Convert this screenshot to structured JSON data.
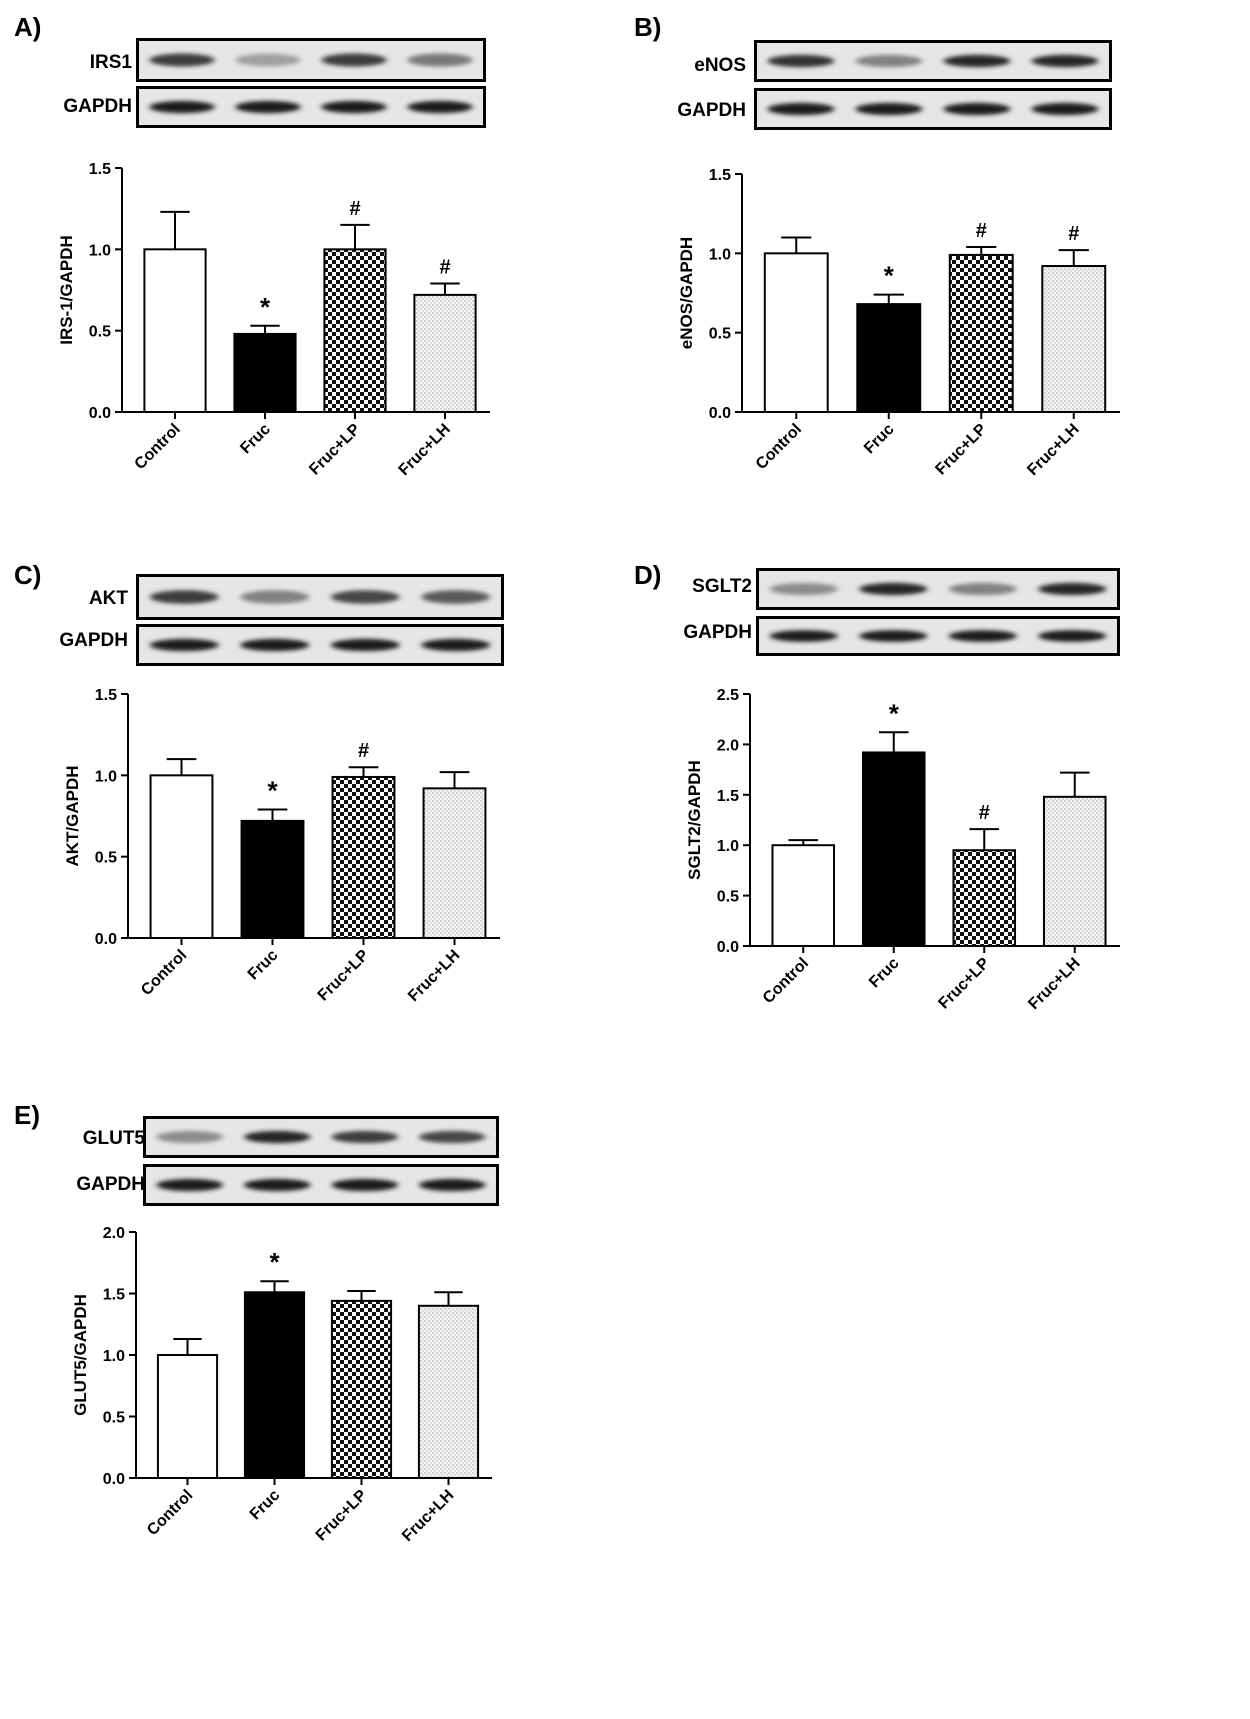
{
  "chart_data": [
    {
      "panel": "A)",
      "type": "bar",
      "blot_labels": [
        "IRS1",
        "GAPDH"
      ],
      "categories": [
        "Control",
        "Fruc",
        "Fruc+LP",
        "Fruc+LH"
      ],
      "values": [
        1.0,
        0.48,
        1.0,
        0.72
      ],
      "errors": [
        0.23,
        0.05,
        0.15,
        0.07
      ],
      "annotations": [
        "",
        "*",
        "#",
        "#"
      ],
      "ylabel": "IRS-1/GAPDH",
      "xlabel": "",
      "title": "",
      "ylim": [
        0,
        1.5
      ],
      "yticks": [
        "0.0",
        "0.5",
        "1.0",
        "1.5"
      ],
      "band_intensity": [
        [
          0.85,
          0.35,
          0.85,
          0.55
        ],
        [
          1.0,
          1.0,
          1.0,
          1.0
        ]
      ]
    },
    {
      "panel": "B)",
      "type": "bar",
      "blot_labels": [
        "eNOS",
        "GAPDH"
      ],
      "categories": [
        "Control",
        "Fruc",
        "Fruc+LP",
        "Fruc+LH"
      ],
      "values": [
        1.0,
        0.68,
        0.99,
        0.92
      ],
      "errors": [
        0.1,
        0.06,
        0.05,
        0.1
      ],
      "annotations": [
        "",
        "*",
        "#",
        "#"
      ],
      "ylabel": "eNOS/GAPDH",
      "xlabel": "",
      "title": "",
      "ylim": [
        0,
        1.5
      ],
      "yticks": [
        "0.0",
        "0.5",
        "1.0",
        "1.5"
      ],
      "band_intensity": [
        [
          0.9,
          0.5,
          0.95,
          0.95
        ],
        [
          1.0,
          1.0,
          1.0,
          1.0
        ]
      ]
    },
    {
      "panel": "C)",
      "type": "bar",
      "blot_labels": [
        "AKT",
        "GAPDH"
      ],
      "categories": [
        "Control",
        "Fruc",
        "Fruc+LP",
        "Fruc+LH"
      ],
      "values": [
        1.0,
        0.72,
        0.99,
        0.92
      ],
      "errors": [
        0.1,
        0.07,
        0.06,
        0.1
      ],
      "annotations": [
        "",
        "*",
        "#",
        ""
      ],
      "ylabel": "AKT/GAPDH",
      "xlabel": "",
      "title": "",
      "ylim": [
        0,
        1.5
      ],
      "yticks": [
        "0.0",
        "0.5",
        "1.0",
        "1.5"
      ],
      "band_intensity": [
        [
          0.85,
          0.5,
          0.8,
          0.7
        ],
        [
          1.0,
          1.0,
          1.0,
          1.0
        ]
      ]
    },
    {
      "panel": "D)",
      "type": "bar",
      "blot_labels": [
        "SGLT2",
        "GAPDH"
      ],
      "categories": [
        "Control",
        "Fruc",
        "Fruc+LP",
        "Fruc+LH"
      ],
      "values": [
        1.0,
        1.92,
        0.95,
        1.48
      ],
      "errors": [
        0.05,
        0.2,
        0.21,
        0.24
      ],
      "annotations": [
        "",
        "*",
        "#",
        ""
      ],
      "ylabel": "SGLT2/GAPDH",
      "xlabel": "",
      "title": "",
      "ylim": [
        0,
        2.5
      ],
      "yticks": [
        "0.0",
        "0.5",
        "1.0",
        "1.5",
        "2.0",
        "2.5"
      ],
      "band_intensity": [
        [
          0.45,
          0.95,
          0.5,
          0.95
        ],
        [
          1.0,
          1.0,
          1.0,
          1.0
        ]
      ]
    },
    {
      "panel": "E)",
      "type": "bar",
      "blot_labels": [
        "GLUT5",
        "GAPDH"
      ],
      "categories": [
        "Control",
        "Fruc",
        "Fruc+LP",
        "Fruc+LH"
      ],
      "values": [
        1.0,
        1.51,
        1.44,
        1.4
      ],
      "errors": [
        0.13,
        0.09,
        0.08,
        0.11
      ],
      "annotations": [
        "",
        "*",
        "",
        ""
      ],
      "ylabel": "GLUT5/GAPDH",
      "xlabel": "",
      "title": "",
      "ylim": [
        0,
        2.0
      ],
      "yticks": [
        "0.0",
        "0.5",
        "1.0",
        "1.5",
        "2.0"
      ],
      "band_intensity": [
        [
          0.45,
          0.95,
          0.85,
          0.8
        ],
        [
          1.0,
          1.0,
          1.0,
          1.0
        ]
      ]
    }
  ],
  "bar_fills": [
    "#ffffff",
    "#000000",
    "checker",
    "dots"
  ]
}
